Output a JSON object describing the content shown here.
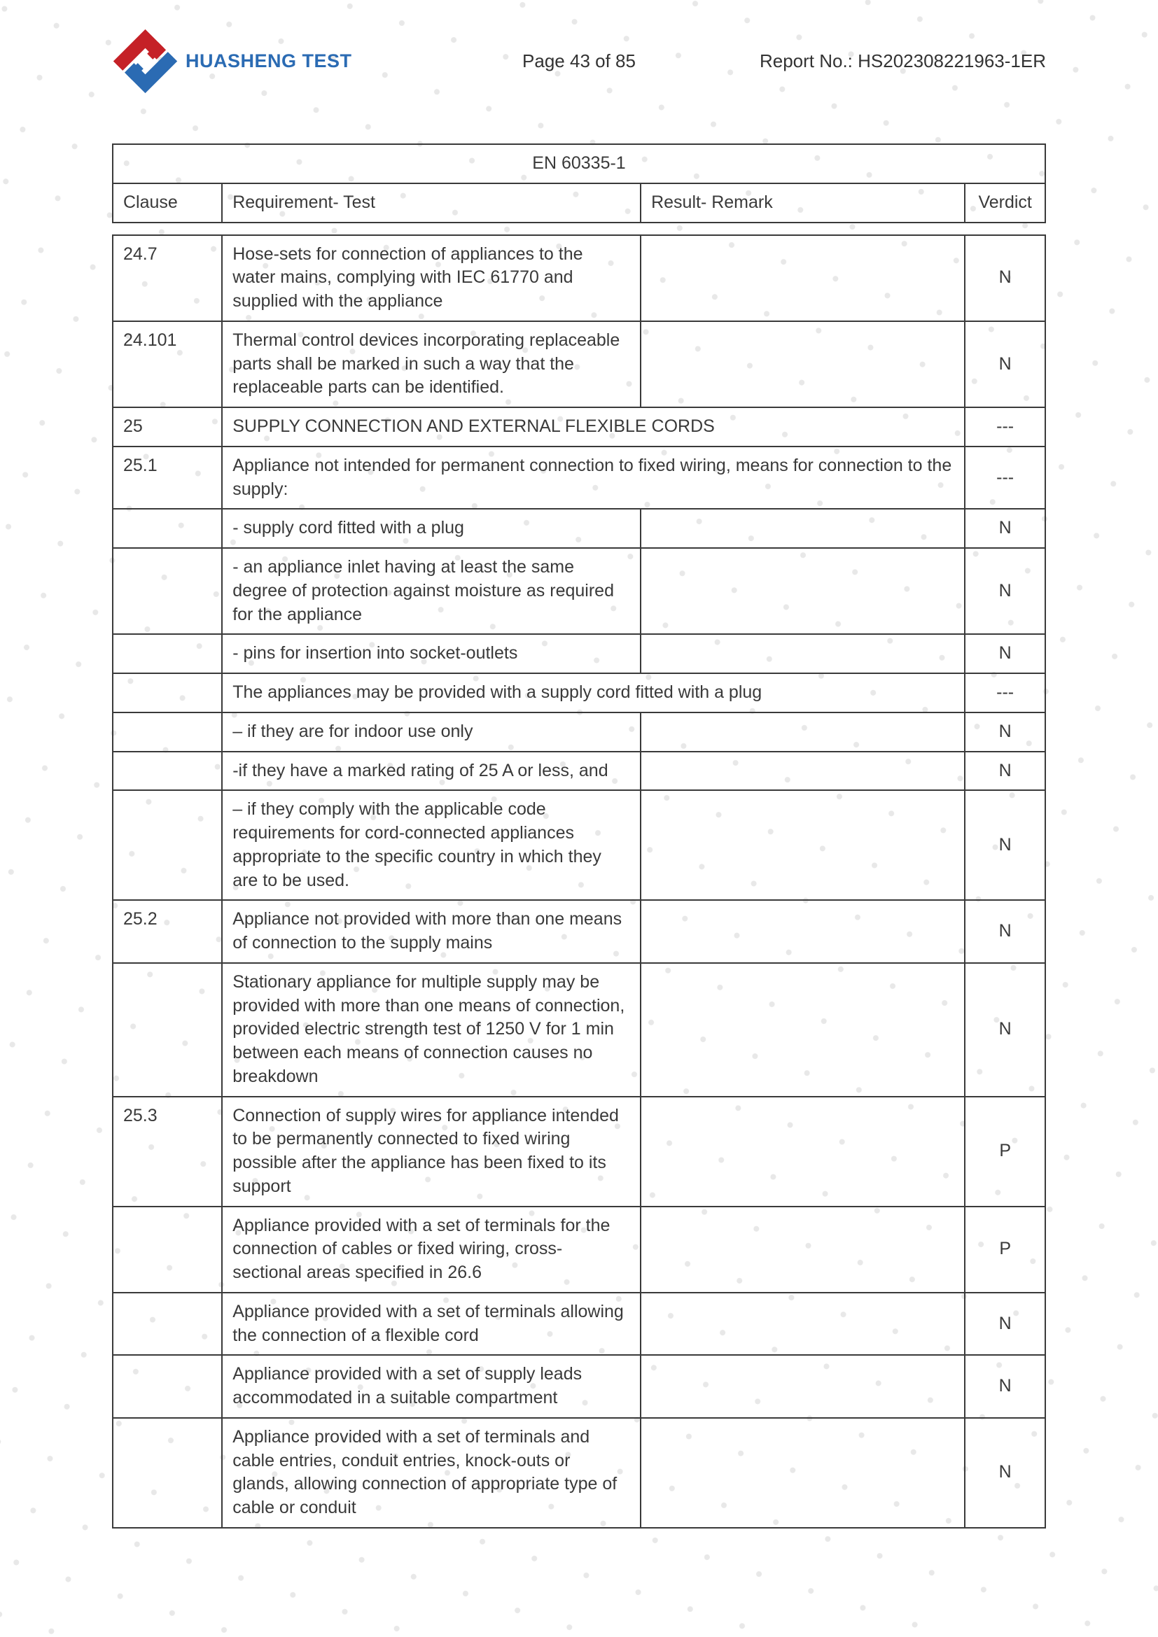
{
  "header": {
    "brand": "HUASHENG TEST",
    "page_label": "Page 43 of 85",
    "report_label": "Report No.: HS202308221963-1ER",
    "logo_colors": {
      "red": "#c52127",
      "blue": "#2b6bb3"
    }
  },
  "watermark": {
    "dot_color": "#e8e8e8",
    "spacing": 78,
    "radius": 4
  },
  "table": {
    "title": "EN 60335-1",
    "columns": {
      "clause": "Clause",
      "requirement": "Requirement- Test",
      "remark": "Result- Remark",
      "verdict": "Verdict"
    },
    "rows": [
      {
        "clause": "24.7",
        "req": "Hose-sets for connection of appliances to the water mains, complying with IEC 61770 and supplied with the appliance",
        "remark": "",
        "verdict": "N"
      },
      {
        "clause": "24.101",
        "req": "Thermal control devices incorporating replaceable parts shall be marked in such a way that the replaceable parts can be identified.",
        "remark": "",
        "verdict": "N"
      },
      {
        "clause": "25",
        "req_merged": "SUPPLY CONNECTION AND EXTERNAL FLEXIBLE CORDS",
        "verdict": "---"
      },
      {
        "clause": "25.1",
        "req_merged": "Appliance not intended for permanent connection to fixed wiring, means for connection to the supply:",
        "verdict": "---"
      },
      {
        "clause": "",
        "req": "- supply cord fitted with a plug",
        "remark": "",
        "verdict": "N"
      },
      {
        "clause": "",
        "req": "- an appliance inlet having at least the same degree of protection against moisture as required for the appliance",
        "remark": "",
        "verdict": "N"
      },
      {
        "clause": "",
        "req": "- pins for insertion into socket-outlets",
        "remark": "",
        "verdict": "N"
      },
      {
        "clause": "",
        "req_merged": "The appliances may be provided with a supply cord fitted with a plug",
        "verdict": "---"
      },
      {
        "clause": "",
        "req": "– if they are for indoor use only",
        "remark": "",
        "verdict": "N"
      },
      {
        "clause": "",
        "req": "-if they have a marked rating of 25 A or less, and",
        "remark": "",
        "verdict": "N"
      },
      {
        "clause": "",
        "req": "– if they comply with the applicable code requirements for cord-connected appliances appropriate to the specific country in which they are to be used.",
        "remark": "",
        "verdict": "N"
      },
      {
        "clause": "25.2",
        "req": "Appliance not provided with more than one means of connection to the supply mains",
        "remark": "",
        "verdict": "N"
      },
      {
        "clause": "",
        "req": "Stationary appliance for multiple supply may be provided with more than one means of connection, provided electric strength test of 1250 V for 1 min between each means of connection causes no breakdown",
        "remark": "",
        "verdict": "N"
      },
      {
        "clause": "25.3",
        "req": "Connection of supply wires for appliance intended to be permanently connected to fixed wiring possible after the appliance has been fixed to its support",
        "remark": "",
        "verdict": "P"
      },
      {
        "clause": "",
        "req": "Appliance provided with a set of terminals for the connection of cables or fixed wiring, cross-sectional areas specified in 26.6",
        "remark": "",
        "verdict": "P"
      },
      {
        "clause": "",
        "req": "Appliance provided with a set of terminals allowing the connection of a flexible cord",
        "remark": "",
        "verdict": "N"
      },
      {
        "clause": "",
        "req": "Appliance provided with a set of supply leads accommodated in a suitable compartment",
        "remark": "",
        "verdict": "N"
      },
      {
        "clause": "",
        "req": "Appliance provided with a set of terminals and cable entries, conduit entries, knock-outs or glands, allowing connection of appropriate type of cable or conduit",
        "remark": "",
        "verdict": "N"
      }
    ]
  }
}
